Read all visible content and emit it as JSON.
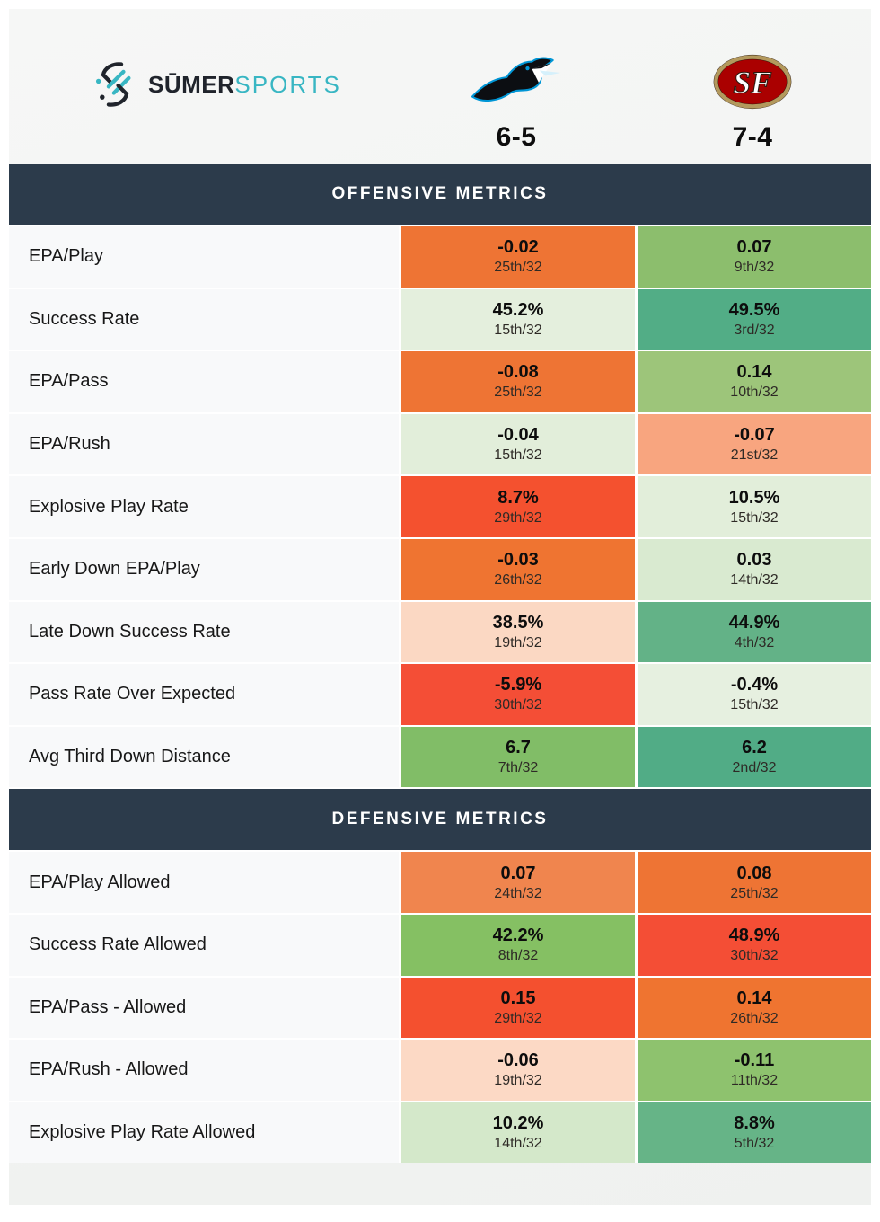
{
  "brand": {
    "name_primary": "SŪMER",
    "name_secondary": "SPORTS",
    "accent_color": "#38b6c3",
    "dark_color": "#20242c"
  },
  "teams": [
    {
      "name": "Carolina Panthers",
      "logo": "panthers-logo",
      "record": "6-5"
    },
    {
      "name": "San Francisco 49ers",
      "logo": "49ers-logo",
      "record": "7-4"
    }
  ],
  "colors": {
    "section_header_bg": "#2c3b4b",
    "label_cell_bg": "#f8f9fa",
    "card_bg": "#f2f3f2"
  },
  "sections": [
    {
      "title": "OFFENSIVE METRICS",
      "rows": [
        {
          "label": "EPA/Play",
          "cells": [
            {
              "value": "-0.02",
              "rank": "25th/32",
              "bg": "#ee7434"
            },
            {
              "value": "0.07",
              "rank": "9th/32",
              "bg": "#8cbe6d"
            }
          ]
        },
        {
          "label": "Success Rate",
          "cells": [
            {
              "value": "45.2%",
              "rank": "15th/32",
              "bg": "#e4efdd"
            },
            {
              "value": "49.5%",
              "rank": "3rd/32",
              "bg": "#52ad86"
            }
          ]
        },
        {
          "label": "EPA/Pass",
          "cells": [
            {
              "value": "-0.08",
              "rank": "25th/32",
              "bg": "#ee7434"
            },
            {
              "value": "0.14",
              "rank": "10th/32",
              "bg": "#9dc57a"
            }
          ]
        },
        {
          "label": "EPA/Rush",
          "cells": [
            {
              "value": "-0.04",
              "rank": "15th/32",
              "bg": "#e2eeda"
            },
            {
              "value": "-0.07",
              "rank": "21st/32",
              "bg": "#f8a57f"
            }
          ]
        },
        {
          "label": "Explosive Play Rate",
          "cells": [
            {
              "value": "8.7%",
              "rank": "29th/32",
              "bg": "#f4512f"
            },
            {
              "value": "10.5%",
              "rank": "15th/32",
              "bg": "#e2eeda"
            }
          ]
        },
        {
          "label": "Early Down EPA/Play",
          "cells": [
            {
              "value": "-0.03",
              "rank": "26th/32",
              "bg": "#ef7431"
            },
            {
              "value": "0.03",
              "rank": "14th/32",
              "bg": "#d9ead0"
            }
          ]
        },
        {
          "label": "Late Down Success Rate",
          "cells": [
            {
              "value": "38.5%",
              "rank": "19th/32",
              "bg": "#fbd8c3"
            },
            {
              "value": "44.9%",
              "rank": "4th/32",
              "bg": "#63b287"
            }
          ]
        },
        {
          "label": "Pass Rate Over Expected",
          "cells": [
            {
              "value": "-5.9%",
              "rank": "30th/32",
              "bg": "#f44e36"
            },
            {
              "value": "-0.4%",
              "rank": "15th/32",
              "bg": "#e6f0e0"
            }
          ]
        },
        {
          "label": "Avg Third Down Distance",
          "cells": [
            {
              "value": "6.7",
              "rank": "7th/32",
              "bg": "#81bd67"
            },
            {
              "value": "6.2",
              "rank": "2nd/32",
              "bg": "#51ac86"
            }
          ]
        }
      ]
    },
    {
      "title": "DEFENSIVE METRICS",
      "rows": [
        {
          "label": "EPA/Play Allowed",
          "cells": [
            {
              "value": "0.07",
              "rank": "24th/32",
              "bg": "#f0854e"
            },
            {
              "value": "0.08",
              "rank": "25th/32",
              "bg": "#ee7434"
            }
          ]
        },
        {
          "label": "Success Rate Allowed",
          "cells": [
            {
              "value": "42.2%",
              "rank": "8th/32",
              "bg": "#85c063"
            },
            {
              "value": "48.9%",
              "rank": "30th/32",
              "bg": "#f44e35"
            }
          ]
        },
        {
          "label": "EPA/Pass - Allowed",
          "cells": [
            {
              "value": "0.15",
              "rank": "29th/32",
              "bg": "#f4502f"
            },
            {
              "value": "0.14",
              "rank": "26th/32",
              "bg": "#ef7430"
            }
          ]
        },
        {
          "label": "EPA/Rush - Allowed",
          "cells": [
            {
              "value": "-0.06",
              "rank": "19th/32",
              "bg": "#fcd9c5"
            },
            {
              "value": "-0.11",
              "rank": "11th/32",
              "bg": "#8ec26e"
            }
          ]
        },
        {
          "label": "Explosive Play Rate Allowed",
          "cells": [
            {
              "value": "10.2%",
              "rank": "14th/32",
              "bg": "#d4e8ca"
            },
            {
              "value": "8.8%",
              "rank": "5th/32",
              "bg": "#66b487"
            }
          ]
        }
      ]
    }
  ]
}
